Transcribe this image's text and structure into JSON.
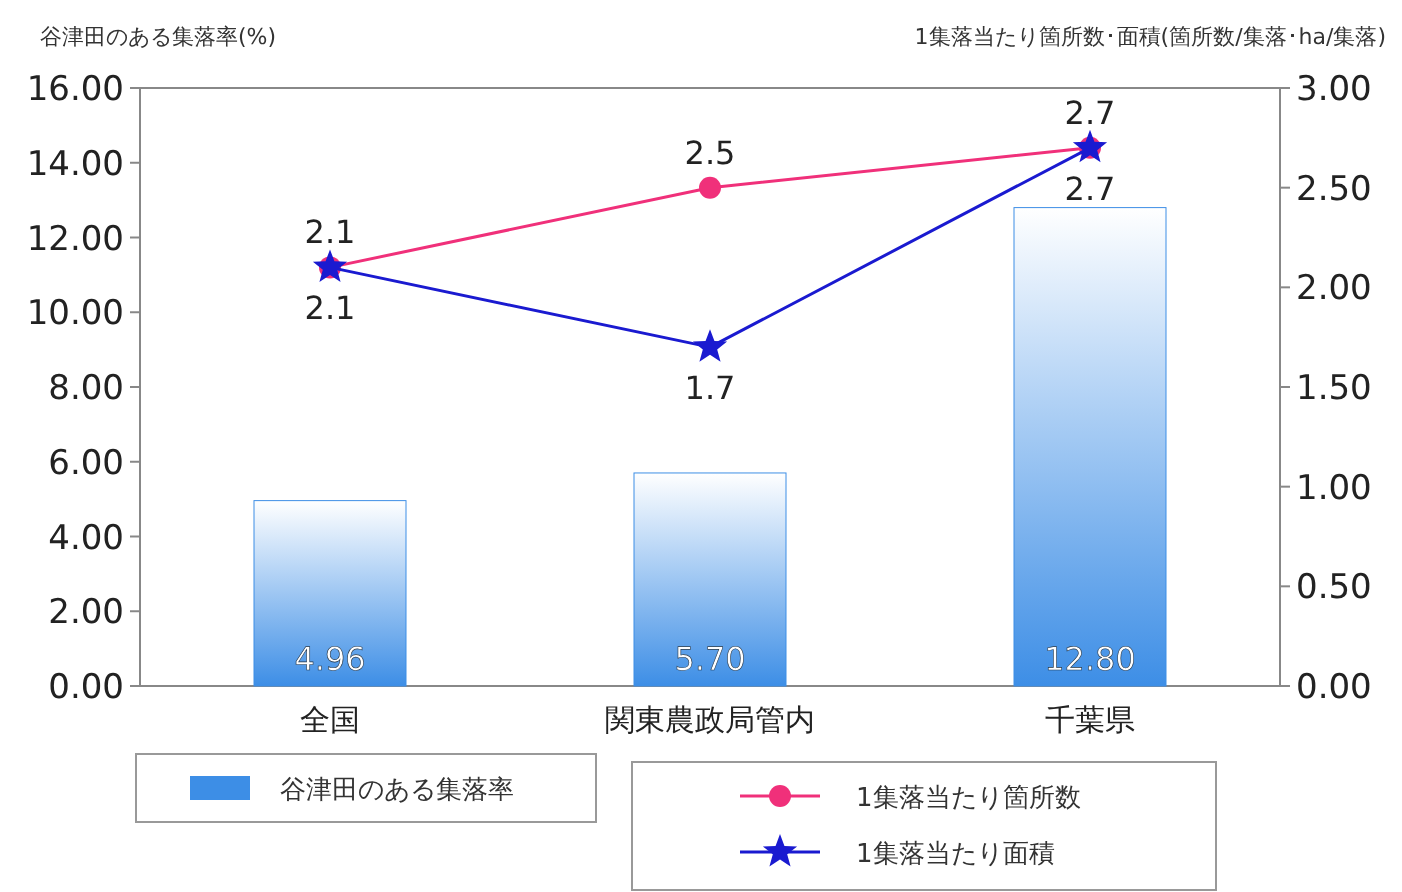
{
  "chart_data": {
    "type": "bar",
    "ylabel": "谷津田のある集落率(%)",
    "y2label": "1集落当たり箇所数･面積(箇所数/集落･ha/集落)",
    "categories": [
      "全国",
      "関東農政局管内",
      "千葉県"
    ],
    "series": [
      {
        "name": "谷津田のある集落率",
        "color": "#3d8ee6",
        "values": [
          4.96,
          5.7,
          12.8
        ],
        "value_labels": [
          "4.96",
          "5.70",
          "12.80"
        ]
      },
      {
        "name": "1集落当たり箇所数",
        "type": "line",
        "axis": "y2",
        "marker": "circle",
        "color": "#f0307a",
        "values": [
          2.1,
          2.5,
          2.7
        ],
        "value_labels": [
          "2.1",
          "2.5",
          "2.7"
        ]
      },
      {
        "name": "1集落当たり面積",
        "type": "line",
        "axis": "y2",
        "marker": "star",
        "color": "#1a1ad0",
        "values": [
          2.1,
          1.7,
          2.7
        ],
        "value_labels": [
          "2.1",
          "1.7",
          "2.7"
        ]
      }
    ],
    "ylim": [
      0,
      16
    ],
    "yticks": [
      {
        "value": 0,
        "label": "0.00"
      },
      {
        "value": 2,
        "label": "2.00"
      },
      {
        "value": 4,
        "label": "4.00"
      },
      {
        "value": 6,
        "label": "6.00"
      },
      {
        "value": 8,
        "label": "8.00"
      },
      {
        "value": 10,
        "label": "10.00"
      },
      {
        "value": 12,
        "label": "12.00"
      },
      {
        "value": 14,
        "label": "14.00"
      },
      {
        "value": 16,
        "label": "16.00"
      }
    ],
    "y2lim": [
      0,
      3
    ],
    "y2ticks": [
      {
        "value": 0,
        "label": "0.00"
      },
      {
        "value": 0.5,
        "label": "0.50"
      },
      {
        "value": 1,
        "label": "1.00"
      },
      {
        "value": 1.5,
        "label": "1.50"
      },
      {
        "value": 2,
        "label": "2.00"
      },
      {
        "value": 2.5,
        "label": "2.50"
      },
      {
        "value": 3,
        "label": "3.00"
      }
    ],
    "legend": "bottom"
  }
}
